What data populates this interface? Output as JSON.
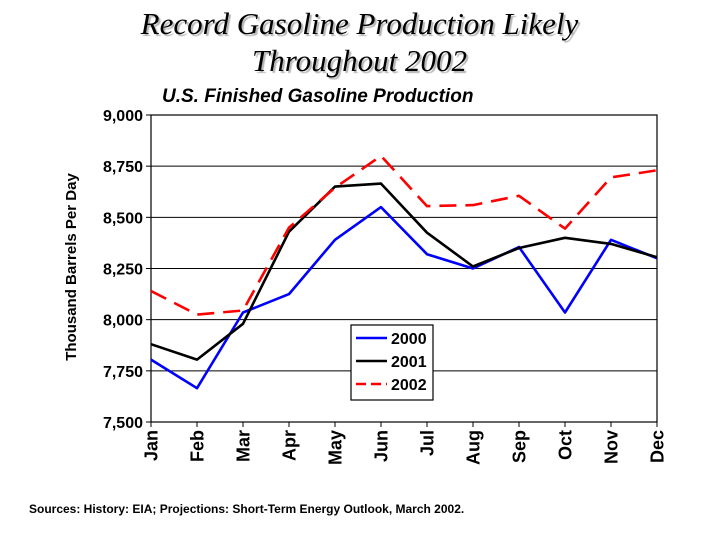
{
  "slide": {
    "title_line_1": "Record Gasoline Production Likely",
    "title_line_2": "Throughout 2002",
    "sources": "Sources: History:  EIA;  Projections: Short-Term Energy Outlook, March 2002."
  },
  "chart_data": {
    "type": "line",
    "title": "U.S. Finished Gasoline Production",
    "xlabel": "",
    "ylabel": "Thousand Barrels Per Day",
    "categories": [
      "Jan",
      "Feb",
      "Mar",
      "Apr",
      "May",
      "Jun",
      "Jul",
      "Aug",
      "Sep",
      "Oct",
      "Nov",
      "Dec"
    ],
    "ylim": [
      7500,
      9000
    ],
    "yticks": [
      7500,
      7750,
      8000,
      8250,
      8500,
      8750,
      9000
    ],
    "ytick_labels": [
      "7,500",
      "7,750",
      "8,000",
      "8,250",
      "8,500",
      "8,750",
      "9,000"
    ],
    "grid": true,
    "legend_position": "bottom-center",
    "series": [
      {
        "name": "2000",
        "color": "#0000ff",
        "dash": "solid",
        "values": [
          7805,
          7665,
          8035,
          8125,
          8390,
          8550,
          8320,
          8250,
          8355,
          8035,
          8390,
          8300
        ]
      },
      {
        "name": "2001",
        "color": "#000000",
        "dash": "solid",
        "values": [
          7880,
          7805,
          7980,
          8430,
          8650,
          8665,
          8425,
          8260,
          8350,
          8400,
          8370,
          8305
        ]
      },
      {
        "name": "2002",
        "color": "#ff0000",
        "dash": "dashed",
        "values": [
          8140,
          8025,
          8045,
          8450,
          8645,
          8800,
          8555,
          8560,
          8605,
          8445,
          8695,
          8730
        ]
      }
    ]
  }
}
